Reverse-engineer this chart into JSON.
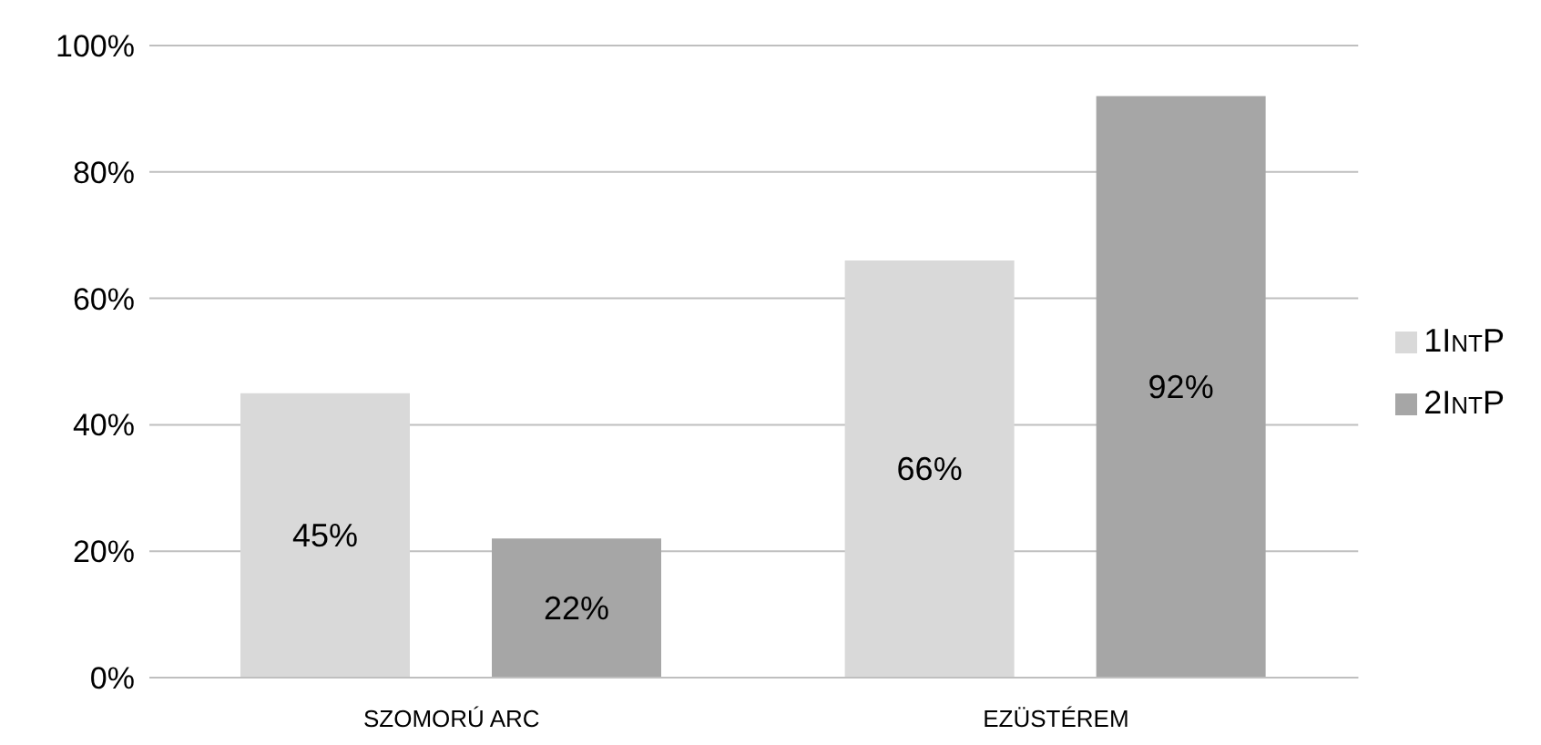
{
  "chart_data": {
    "type": "bar",
    "categories": [
      "SZOMORÚ ARC",
      "EZÜSTÉREM"
    ],
    "series": [
      {
        "name": "1IntP",
        "color": "#d9d9d9",
        "values": [
          45,
          66
        ],
        "value_labels": [
          "45%",
          "66%"
        ]
      },
      {
        "name": "2IntP",
        "color": "#a6a6a6",
        "values": [
          22,
          92
        ],
        "value_labels": [
          "22%",
          "92%"
        ]
      }
    ],
    "ylim": [
      0,
      100
    ],
    "yticks": [
      {
        "value": 0,
        "label": "0%"
      },
      {
        "value": 20,
        "label": "20%"
      },
      {
        "value": 40,
        "label": "40%"
      },
      {
        "value": 60,
        "label": "60%"
      },
      {
        "value": 80,
        "label": "80%"
      },
      {
        "value": 100,
        "label": "100%"
      }
    ],
    "grid": "y",
    "legend": "right"
  }
}
